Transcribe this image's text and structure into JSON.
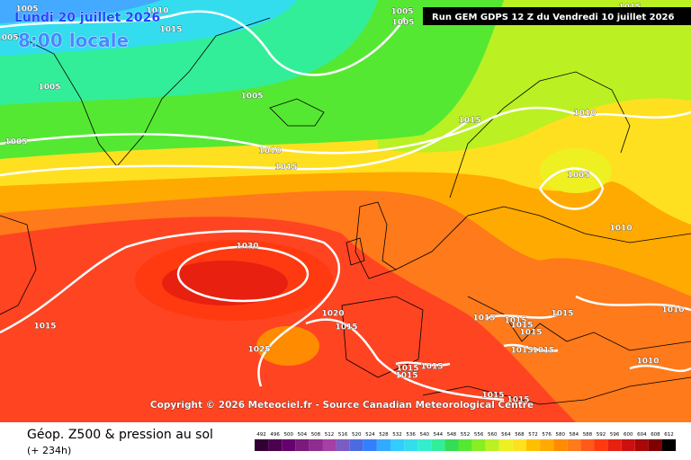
{
  "header": {
    "date": "Lundi 20 juillet 2026",
    "time": "8:00 locale",
    "run": "Run GEM GDPS 12 Z du Vendredi 10 juillet 2026"
  },
  "copyright": "Copyright © 2026 Meteociel.fr - Source Canadian Meteorological Centre",
  "footer": {
    "title": "Géop. Z500 & pression au sol",
    "lead": "(+ 234h)"
  },
  "isobar_labels": [
    1005,
    1010,
    1015,
    1005,
    1005,
    1005,
    1015,
    1005,
    1005,
    1005,
    1010,
    1015,
    1015,
    1010,
    1005,
    1010,
    1030,
    1020,
    1015,
    1015,
    1015,
    1015,
    1015,
    1015,
    1010,
    1015,
    1025,
    1015,
    1015,
    1010,
    1015,
    1015,
    1015,
    1015,
    1015
  ],
  "legend": [
    {
      "value": 492,
      "color": "#330033"
    },
    {
      "value": 496,
      "color": "#4b0050"
    },
    {
      "value": 500,
      "color": "#66006e"
    },
    {
      "value": 504,
      "color": "#7a1a7a"
    },
    {
      "value": 508,
      "color": "#8f2d8f"
    },
    {
      "value": 512,
      "color": "#a63fa6"
    },
    {
      "value": 516,
      "color": "#7a5cc2"
    },
    {
      "value": 520,
      "color": "#4d6be0"
    },
    {
      "value": 524,
      "color": "#3380ff"
    },
    {
      "value": 528,
      "color": "#33aaff"
    },
    {
      "value": 532,
      "color": "#33ccff"
    },
    {
      "value": 536,
      "color": "#33ddee"
    },
    {
      "value": 540,
      "color": "#33eecc"
    },
    {
      "value": 544,
      "color": "#33ee99"
    },
    {
      "value": 548,
      "color": "#33dd55"
    },
    {
      "value": 552,
      "color": "#55e833"
    },
    {
      "value": 556,
      "color": "#88ee22"
    },
    {
      "value": 560,
      "color": "#bbf022"
    },
    {
      "value": 564,
      "color": "#eef022"
    },
    {
      "value": 568,
      "color": "#ffe020"
    },
    {
      "value": 572,
      "color": "#ffc000"
    },
    {
      "value": 576,
      "color": "#ffaa00"
    },
    {
      "value": 580,
      "color": "#ff8c00"
    },
    {
      "value": 584,
      "color": "#ff7a1a"
    },
    {
      "value": 588,
      "color": "#ff5a1a"
    },
    {
      "value": 592,
      "color": "#ff3a10"
    },
    {
      "value": 596,
      "color": "#e82010"
    },
    {
      "value": 600,
      "color": "#cc1010"
    },
    {
      "value": 604,
      "color": "#a80808"
    },
    {
      "value": 608,
      "color": "#800000"
    },
    {
      "value": 612,
      "color": "#000000"
    }
  ]
}
